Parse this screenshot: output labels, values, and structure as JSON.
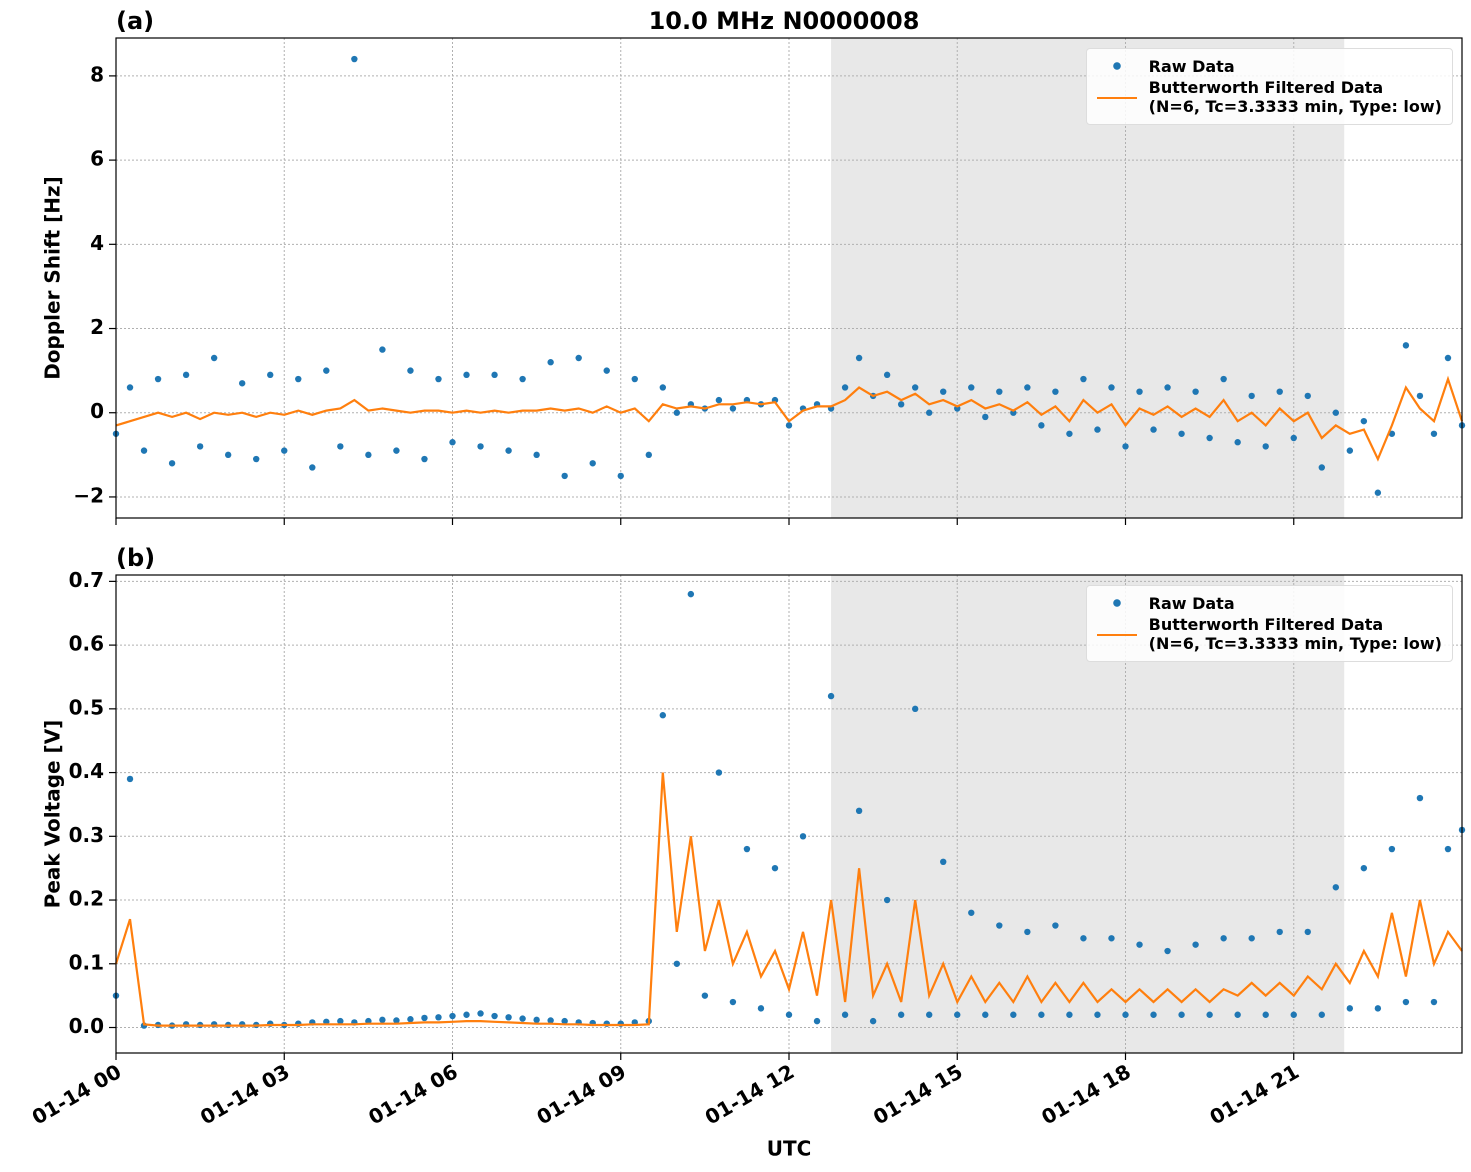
{
  "chart_data": [
    {
      "type": "line",
      "title": "10.0 MHz N0000008",
      "panel_label": "(a)",
      "ylabel": "Doppler Shift [Hz]",
      "x": [
        0,
        0.25,
        0.5,
        0.75,
        1,
        1.25,
        1.5,
        1.75,
        2,
        2.25,
        2.5,
        2.75,
        3,
        3.25,
        3.5,
        3.75,
        4,
        4.25,
        4.5,
        4.75,
        5,
        5.25,
        5.5,
        5.75,
        6,
        6.25,
        6.5,
        6.75,
        7,
        7.25,
        7.5,
        7.75,
        8,
        8.25,
        8.5,
        8.75,
        9,
        9.25,
        9.5,
        9.75,
        10,
        10.25,
        10.5,
        10.75,
        11,
        11.25,
        11.5,
        11.75,
        12,
        12.25,
        12.5,
        12.75,
        13,
        13.25,
        13.5,
        13.75,
        14,
        14.25,
        14.5,
        14.75,
        15,
        15.25,
        15.5,
        15.75,
        16,
        16.25,
        16.5,
        16.75,
        17,
        17.25,
        17.5,
        17.75,
        18,
        18.25,
        18.5,
        18.75,
        19,
        19.25,
        19.5,
        19.75,
        20,
        20.25,
        20.5,
        20.75,
        21,
        21.25,
        21.5,
        21.75,
        22,
        22.25,
        22.5,
        22.75,
        23,
        23.25,
        23.5,
        23.75,
        24
      ],
      "series": [
        {
          "name": "Raw Data",
          "color": "#1f77b4",
          "marker": "dot",
          "values": [
            -0.5,
            0.6,
            -0.9,
            0.8,
            -1.2,
            0.9,
            -0.8,
            1.3,
            -1.0,
            0.7,
            -1.1,
            0.9,
            -0.9,
            0.8,
            -1.3,
            1.0,
            -0.8,
            8.4,
            -1.0,
            1.5,
            -0.9,
            1.0,
            -1.1,
            0.8,
            -0.7,
            0.9,
            -0.8,
            0.9,
            -0.9,
            0.8,
            -1.0,
            1.2,
            -1.5,
            1.3,
            -1.2,
            1.0,
            -1.5,
            0.8,
            -1.0,
            0.6,
            0.0,
            0.2,
            0.1,
            0.3,
            0.1,
            0.3,
            0.2,
            0.3,
            -0.3,
            0.1,
            0.2,
            0.1,
            0.6,
            1.3,
            0.4,
            0.9,
            0.2,
            0.6,
            0.0,
            0.5,
            0.1,
            0.6,
            -0.1,
            0.5,
            0.0,
            0.6,
            -0.3,
            0.5,
            -0.5,
            0.8,
            -0.4,
            0.6,
            -0.8,
            0.5,
            -0.4,
            0.6,
            -0.5,
            0.5,
            -0.6,
            0.8,
            -0.7,
            0.4,
            -0.8,
            0.5,
            -0.6,
            0.4,
            -1.3,
            0.0,
            -0.9,
            -0.2,
            -1.9,
            -0.5,
            1.6,
            0.4,
            -0.5,
            1.3,
            -0.3
          ]
        },
        {
          "name": "Butterworth Filtered Data\n(N=6, Tc=3.3333 min, Type: low)",
          "color": "#ff7f0e",
          "marker": "line",
          "values": [
            -0.3,
            -0.2,
            -0.1,
            0,
            -0.1,
            0,
            -0.15,
            0,
            -0.05,
            0,
            -0.1,
            0,
            -0.05,
            0.05,
            -0.05,
            0.05,
            0.1,
            0.3,
            0.05,
            0.1,
            0.05,
            0,
            0.05,
            0.05,
            0,
            0.05,
            0,
            0.05,
            0,
            0.05,
            0.05,
            0.1,
            0.05,
            0.1,
            0,
            0.15,
            0,
            0.1,
            -0.2,
            0.2,
            0.1,
            0.15,
            0.1,
            0.2,
            0.2,
            0.25,
            0.2,
            0.25,
            -0.2,
            0.05,
            0.15,
            0.15,
            0.3,
            0.6,
            0.4,
            0.5,
            0.3,
            0.45,
            0.2,
            0.3,
            0.15,
            0.3,
            0.1,
            0.2,
            0.05,
            0.25,
            -0.05,
            0.15,
            -0.2,
            0.3,
            0.0,
            0.2,
            -0.3,
            0.1,
            -0.05,
            0.15,
            -0.1,
            0.1,
            -0.1,
            0.3,
            -0.2,
            0.0,
            -0.3,
            0.1,
            -0.2,
            0.0,
            -0.6,
            -0.3,
            -0.5,
            -0.4,
            -1.1,
            -0.3,
            0.6,
            0.1,
            -0.2,
            0.8,
            -0.2
          ]
        }
      ],
      "xlim": [
        0,
        24
      ],
      "xticks": [
        0,
        3,
        6,
        9,
        12,
        15,
        18,
        21
      ],
      "ylim": [
        -2.5,
        8.9
      ],
      "yticks": [
        {
          "value": -2,
          "label": "−2"
        },
        0,
        2,
        4,
        6,
        8
      ],
      "shaded_span": [
        12.75,
        21.9
      ],
      "grid": true,
      "legend": "upper right"
    },
    {
      "type": "line",
      "panel_label": "(b)",
      "ylabel": "Peak Voltage [V]",
      "xlabel": "UTC",
      "x": [
        0,
        0.25,
        0.5,
        0.75,
        1,
        1.25,
        1.5,
        1.75,
        2,
        2.25,
        2.5,
        2.75,
        3,
        3.25,
        3.5,
        3.75,
        4,
        4.25,
        4.5,
        4.75,
        5,
        5.25,
        5.5,
        5.75,
        6,
        6.25,
        6.5,
        6.75,
        7,
        7.25,
        7.5,
        7.75,
        8,
        8.25,
        8.5,
        8.75,
        9,
        9.25,
        9.5,
        9.75,
        10,
        10.25,
        10.5,
        10.75,
        11,
        11.25,
        11.5,
        11.75,
        12,
        12.25,
        12.5,
        12.75,
        13,
        13.25,
        13.5,
        13.75,
        14,
        14.25,
        14.5,
        14.75,
        15,
        15.25,
        15.5,
        15.75,
        16,
        16.25,
        16.5,
        16.75,
        17,
        17.25,
        17.5,
        17.75,
        18,
        18.25,
        18.5,
        18.75,
        19,
        19.25,
        19.5,
        19.75,
        20,
        20.25,
        20.5,
        20.75,
        21,
        21.25,
        21.5,
        21.75,
        22,
        22.25,
        22.5,
        22.75,
        23,
        23.25,
        23.5,
        23.75,
        24
      ],
      "series": [
        {
          "name": "Raw Data",
          "color": "#1f77b4",
          "marker": "dot",
          "values": [
            0.05,
            0.39,
            0.003,
            0.004,
            0.003,
            0.005,
            0.004,
            0.005,
            0.004,
            0.005,
            0.004,
            0.006,
            0.004,
            0.006,
            0.008,
            0.009,
            0.01,
            0.008,
            0.01,
            0.012,
            0.011,
            0.013,
            0.015,
            0.016,
            0.018,
            0.02,
            0.022,
            0.018,
            0.016,
            0.014,
            0.012,
            0.011,
            0.01,
            0.008,
            0.007,
            0.006,
            0.006,
            0.008,
            0.01,
            0.49,
            0.1,
            0.68,
            0.05,
            0.4,
            0.04,
            0.28,
            0.03,
            0.25,
            0.02,
            0.3,
            0.01,
            0.52,
            0.02,
            0.34,
            0.01,
            0.2,
            0.02,
            0.5,
            0.02,
            0.26,
            0.02,
            0.18,
            0.02,
            0.16,
            0.02,
            0.15,
            0.02,
            0.16,
            0.02,
            0.14,
            0.02,
            0.14,
            0.02,
            0.13,
            0.02,
            0.12,
            0.02,
            0.13,
            0.02,
            0.14,
            0.02,
            0.14,
            0.02,
            0.15,
            0.02,
            0.15,
            0.02,
            0.22,
            0.03,
            0.25,
            0.03,
            0.28,
            0.04,
            0.36,
            0.04,
            0.28,
            0.31
          ]
        },
        {
          "name": "Butterworth Filtered Data\n(N=6, Tc=3.3333 min, Type: low)",
          "color": "#ff7f0e",
          "marker": "line",
          "values": [
            0.1,
            0.17,
            0.005,
            0.003,
            0.003,
            0.003,
            0.003,
            0.003,
            0.003,
            0.003,
            0.003,
            0.004,
            0.004,
            0.004,
            0.005,
            0.005,
            0.005,
            0.005,
            0.006,
            0.006,
            0.006,
            0.007,
            0.008,
            0.008,
            0.009,
            0.01,
            0.01,
            0.009,
            0.008,
            0.007,
            0.006,
            0.006,
            0.005,
            0.005,
            0.004,
            0.004,
            0.004,
            0.004,
            0.005,
            0.4,
            0.15,
            0.3,
            0.12,
            0.2,
            0.1,
            0.15,
            0.08,
            0.12,
            0.06,
            0.15,
            0.05,
            0.2,
            0.04,
            0.25,
            0.05,
            0.1,
            0.04,
            0.2,
            0.05,
            0.1,
            0.04,
            0.08,
            0.04,
            0.07,
            0.04,
            0.08,
            0.04,
            0.07,
            0.04,
            0.07,
            0.04,
            0.06,
            0.04,
            0.06,
            0.04,
            0.06,
            0.04,
            0.06,
            0.04,
            0.06,
            0.05,
            0.07,
            0.05,
            0.07,
            0.05,
            0.08,
            0.06,
            0.1,
            0.07,
            0.12,
            0.08,
            0.18,
            0.08,
            0.2,
            0.1,
            0.15,
            0.12
          ]
        }
      ],
      "xlim": [
        0,
        24
      ],
      "xticks": [
        {
          "value": 0,
          "label": "01-14 00"
        },
        {
          "value": 3,
          "label": "01-14 03"
        },
        {
          "value": 6,
          "label": "01-14 06"
        },
        {
          "value": 9,
          "label": "01-14 09"
        },
        {
          "value": 12,
          "label": "01-14 12"
        },
        {
          "value": 15,
          "label": "01-14 15"
        },
        {
          "value": 18,
          "label": "01-14 18"
        },
        {
          "value": 21,
          "label": "01-14 21"
        }
      ],
      "ylim": [
        -0.04,
        0.71
      ],
      "yticks": [
        {
          "value": 0,
          "label": "0.0"
        },
        0.1,
        0.2,
        0.3,
        0.4,
        0.5,
        0.6,
        0.7
      ],
      "shaded_span": [
        12.75,
        21.9
      ],
      "grid": true,
      "legend": "upper right"
    }
  ]
}
